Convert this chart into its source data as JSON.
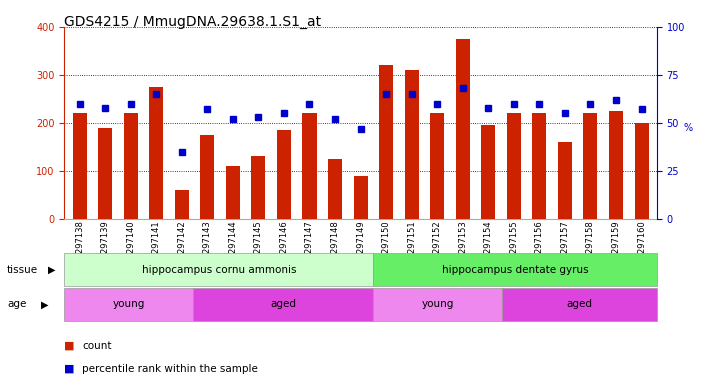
{
  "title": "GDS4215 / MmugDNA.29638.1.S1_at",
  "samples": [
    "GSM297138",
    "GSM297139",
    "GSM297140",
    "GSM297141",
    "GSM297142",
    "GSM297143",
    "GSM297144",
    "GSM297145",
    "GSM297146",
    "GSM297147",
    "GSM297148",
    "GSM297149",
    "GSM297150",
    "GSM297151",
    "GSM297152",
    "GSM297153",
    "GSM297154",
    "GSM297155",
    "GSM297156",
    "GSM297157",
    "GSM297158",
    "GSM297159",
    "GSM297160"
  ],
  "counts": [
    220,
    190,
    220,
    275,
    60,
    175,
    110,
    130,
    185,
    220,
    125,
    90,
    320,
    310,
    220,
    375,
    195,
    220,
    220,
    160,
    220,
    225,
    200
  ],
  "percentiles": [
    60,
    58,
    60,
    65,
    35,
    57,
    52,
    53,
    55,
    60,
    52,
    47,
    65,
    65,
    60,
    68,
    58,
    60,
    60,
    55,
    60,
    62,
    57
  ],
  "bar_color": "#CC2200",
  "dot_color": "#0000CC",
  "ylim_left": [
    0,
    400
  ],
  "ylim_right": [
    0,
    100
  ],
  "yticks_left": [
    0,
    100,
    200,
    300,
    400
  ],
  "yticks_right": [
    0,
    25,
    50,
    75,
    100
  ],
  "tissue_groups": [
    {
      "label": "hippocampus cornu ammonis",
      "start": 0,
      "end": 11,
      "color": "#CCFFCC"
    },
    {
      "label": "hippocampus dentate gyrus",
      "start": 12,
      "end": 22,
      "color": "#66EE66"
    }
  ],
  "age_groups": [
    {
      "label": "young",
      "start": 0,
      "end": 4,
      "color": "#EE88EE"
    },
    {
      "label": "aged",
      "start": 5,
      "end": 11,
      "color": "#DD44DD"
    },
    {
      "label": "young",
      "start": 12,
      "end": 16,
      "color": "#EE88EE"
    },
    {
      "label": "aged",
      "start": 17,
      "end": 22,
      "color": "#DD44DD"
    }
  ],
  "tissue_label": "tissue",
  "age_label": "age",
  "legend_count_label": "count",
  "legend_pct_label": "percentile rank within the sample",
  "background_color": "#FFFFFF",
  "ylabel_left_color": "#CC2200",
  "ylabel_right_color": "#0000CC",
  "right_axis_label": "%",
  "title_fontsize": 10,
  "tick_fontsize": 7,
  "bar_width": 0.55
}
